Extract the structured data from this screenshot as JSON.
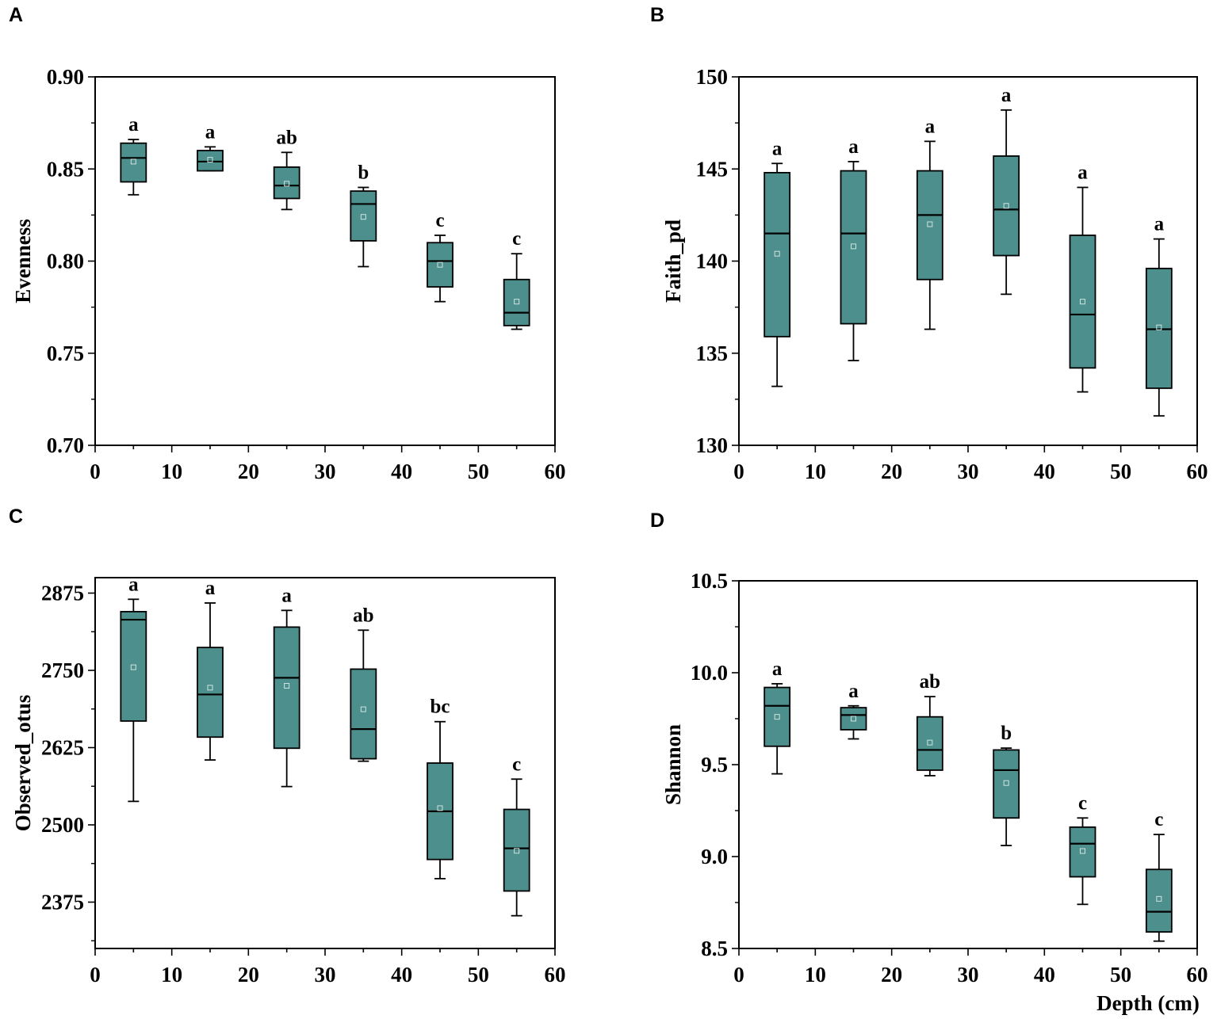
{
  "colors": {
    "box_fill": "#4d8f8c",
    "stroke": "#000000",
    "background": "#ffffff"
  },
  "chart_data": [
    {
      "panel": "A",
      "type": "box",
      "xlabel": "",
      "ylabel": "Evenness",
      "xlim": [
        0,
        60
      ],
      "ylim": [
        0.7,
        0.9
      ],
      "xticks": [
        "0",
        "10",
        "20",
        "30",
        "40",
        "50",
        "60"
      ],
      "yticks": [
        "0.70",
        "0.75",
        "0.80",
        "0.85",
        "0.90"
      ],
      "ytick_values": [
        0.7,
        0.75,
        0.8,
        0.85,
        0.9
      ],
      "boxes": [
        {
          "x": 5,
          "whisker_low": 0.836,
          "q1": 0.843,
          "median": 0.856,
          "q3": 0.864,
          "whisker_high": 0.866,
          "mean": 0.854,
          "sig": "a"
        },
        {
          "x": 15,
          "whisker_low": 0.849,
          "q1": 0.849,
          "median": 0.854,
          "q3": 0.86,
          "whisker_high": 0.862,
          "mean": 0.855,
          "sig": "a"
        },
        {
          "x": 25,
          "whisker_low": 0.828,
          "q1": 0.834,
          "median": 0.841,
          "q3": 0.851,
          "whisker_high": 0.859,
          "mean": 0.842,
          "sig": "ab"
        },
        {
          "x": 35,
          "whisker_low": 0.797,
          "q1": 0.811,
          "median": 0.831,
          "q3": 0.838,
          "whisker_high": 0.84,
          "mean": 0.824,
          "sig": "b"
        },
        {
          "x": 45,
          "whisker_low": 0.778,
          "q1": 0.786,
          "median": 0.8,
          "q3": 0.81,
          "whisker_high": 0.814,
          "mean": 0.798,
          "sig": "c"
        },
        {
          "x": 55,
          "whisker_low": 0.763,
          "q1": 0.765,
          "median": 0.772,
          "q3": 0.79,
          "whisker_high": 0.804,
          "mean": 0.778,
          "sig": "c"
        }
      ]
    },
    {
      "panel": "B",
      "type": "box",
      "xlabel": "",
      "ylabel": "Faith_pd",
      "xlim": [
        0,
        60
      ],
      "ylim": [
        130,
        150
      ],
      "xticks": [
        "0",
        "10",
        "20",
        "30",
        "40",
        "50",
        "60"
      ],
      "yticks": [
        "130",
        "135",
        "140",
        "145",
        "150"
      ],
      "ytick_values": [
        130,
        135,
        140,
        145,
        150
      ],
      "boxes": [
        {
          "x": 5,
          "whisker_low": 133.2,
          "q1": 135.9,
          "median": 141.5,
          "q3": 144.8,
          "whisker_high": 145.3,
          "mean": 140.4,
          "sig": "a"
        },
        {
          "x": 15,
          "whisker_low": 134.6,
          "q1": 136.6,
          "median": 141.5,
          "q3": 144.9,
          "whisker_high": 145.4,
          "mean": 140.8,
          "sig": "a"
        },
        {
          "x": 25,
          "whisker_low": 136.3,
          "q1": 139.0,
          "median": 142.5,
          "q3": 144.9,
          "whisker_high": 146.5,
          "mean": 142.0,
          "sig": "a"
        },
        {
          "x": 35,
          "whisker_low": 138.2,
          "q1": 140.3,
          "median": 142.8,
          "q3": 145.7,
          "whisker_high": 148.2,
          "mean": 143.0,
          "sig": "a"
        },
        {
          "x": 45,
          "whisker_low": 132.9,
          "q1": 134.2,
          "median": 137.1,
          "q3": 141.4,
          "whisker_high": 144.0,
          "mean": 137.8,
          "sig": "a"
        },
        {
          "x": 55,
          "whisker_low": 131.6,
          "q1": 133.1,
          "median": 136.3,
          "q3": 139.6,
          "whisker_high": 141.2,
          "mean": 136.4,
          "sig": "a"
        }
      ]
    },
    {
      "panel": "C",
      "type": "box",
      "xlabel": "",
      "ylabel": "Observed_otus",
      "xlim": [
        0,
        60
      ],
      "ylim": [
        2300,
        2900
      ],
      "xticks": [
        "0",
        "10",
        "20",
        "30",
        "40",
        "50",
        "60"
      ],
      "yticks": [
        "2375",
        "2500",
        "2625",
        "2750",
        "2875"
      ],
      "ytick_values": [
        2375,
        2500,
        2625,
        2750,
        2875
      ],
      "boxes": [
        {
          "x": 5,
          "whisker_low": 2538,
          "q1": 2668,
          "median": 2832,
          "q3": 2845,
          "whisker_high": 2865,
          "mean": 2755,
          "sig": "a"
        },
        {
          "x": 15,
          "whisker_low": 2605,
          "q1": 2642,
          "median": 2711,
          "q3": 2787,
          "whisker_high": 2859,
          "mean": 2722,
          "sig": "a"
        },
        {
          "x": 25,
          "whisker_low": 2562,
          "q1": 2624,
          "median": 2738,
          "q3": 2820,
          "whisker_high": 2847,
          "mean": 2725,
          "sig": "a"
        },
        {
          "x": 35,
          "whisker_low": 2603,
          "q1": 2607,
          "median": 2655,
          "q3": 2752,
          "whisker_high": 2815,
          "mean": 2687,
          "sig": "ab"
        },
        {
          "x": 45,
          "whisker_low": 2413,
          "q1": 2444,
          "median": 2522,
          "q3": 2600,
          "whisker_high": 2667,
          "mean": 2527,
          "sig": "bc"
        },
        {
          "x": 55,
          "whisker_low": 2353,
          "q1": 2393,
          "median": 2462,
          "q3": 2525,
          "whisker_high": 2574,
          "mean": 2458,
          "sig": "c"
        }
      ]
    },
    {
      "panel": "D",
      "type": "box",
      "xlabel": "Depth (cm)",
      "ylabel": "Shannon",
      "xlim": [
        0,
        60
      ],
      "ylim": [
        8.5,
        10.5
      ],
      "xticks": [
        "0",
        "10",
        "20",
        "30",
        "40",
        "50",
        "60"
      ],
      "yticks": [
        "8.5",
        "9.0",
        "9.5",
        "10.0",
        "10.5"
      ],
      "ytick_values": [
        8.5,
        9.0,
        9.5,
        10.0,
        10.5
      ],
      "boxes": [
        {
          "x": 5,
          "whisker_low": 9.45,
          "q1": 9.6,
          "median": 9.82,
          "q3": 9.92,
          "whisker_high": 9.94,
          "mean": 9.76,
          "sig": "a"
        },
        {
          "x": 15,
          "whisker_low": 9.64,
          "q1": 9.69,
          "median": 9.77,
          "q3": 9.81,
          "whisker_high": 9.82,
          "mean": 9.75,
          "sig": "a"
        },
        {
          "x": 25,
          "whisker_low": 9.44,
          "q1": 9.47,
          "median": 9.58,
          "q3": 9.76,
          "whisker_high": 9.87,
          "mean": 9.62,
          "sig": "ab"
        },
        {
          "x": 35,
          "whisker_low": 9.06,
          "q1": 9.21,
          "median": 9.47,
          "q3": 9.58,
          "whisker_high": 9.59,
          "mean": 9.4,
          "sig": "b"
        },
        {
          "x": 45,
          "whisker_low": 8.74,
          "q1": 8.89,
          "median": 9.07,
          "q3": 9.16,
          "whisker_high": 9.21,
          "mean": 9.03,
          "sig": "c"
        },
        {
          "x": 55,
          "whisker_low": 8.54,
          "q1": 8.59,
          "median": 8.7,
          "q3": 8.93,
          "whisker_high": 9.12,
          "mean": 8.77,
          "sig": "c"
        }
      ]
    }
  ]
}
